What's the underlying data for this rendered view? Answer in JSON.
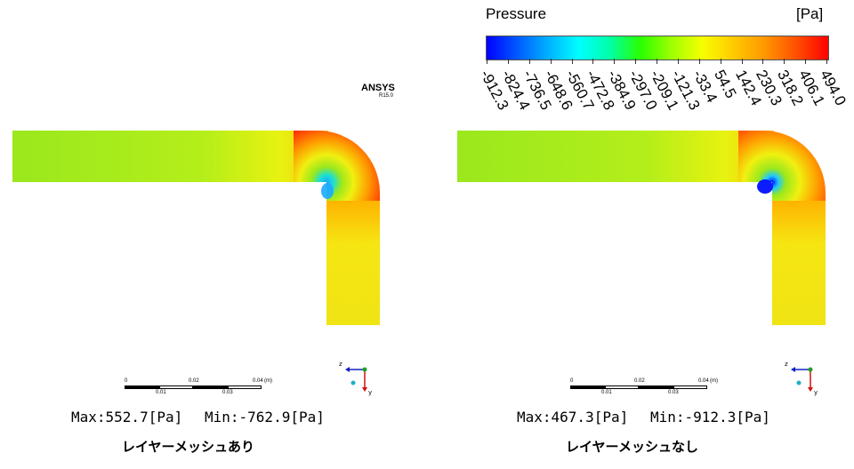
{
  "legend": {
    "title": "Pressure",
    "unit": "[Pa]",
    "ticks": [
      "-912.3",
      "-824.4",
      "-736.5",
      "-648.6",
      "-560.7",
      "-472.8",
      "-384.9",
      "-297.0",
      "-209.1",
      "-121.3",
      "-33.4",
      "54.5",
      "142.4",
      "230.3",
      "318.2",
      "406.1",
      "494.0"
    ]
  },
  "logo": {
    "brand": "ANSYS",
    "version": "R15.0"
  },
  "scale": {
    "labels_top": [
      "0",
      "0.02",
      "0.04"
    ],
    "labels_bottom": [
      "0.01",
      "0.03"
    ],
    "unit": "(m)"
  },
  "axis": {
    "z": "z",
    "y": "y"
  },
  "panels": [
    {
      "max_text": "Max:552.7[Pa]",
      "min_text": "Min:-762.9[Pa]",
      "caption": "レイヤーメッシュあり",
      "min_color": "#1ea8ff"
    },
    {
      "max_text": "Max:467.3[Pa]",
      "min_text": "Min:-912.3[Pa]",
      "caption": "レイヤーメッシュなし",
      "min_color": "#0010ff"
    }
  ],
  "colors": {
    "field": "#9ae81d",
    "bar_low": "#0000ff",
    "bar_high": "#ff0000"
  }
}
